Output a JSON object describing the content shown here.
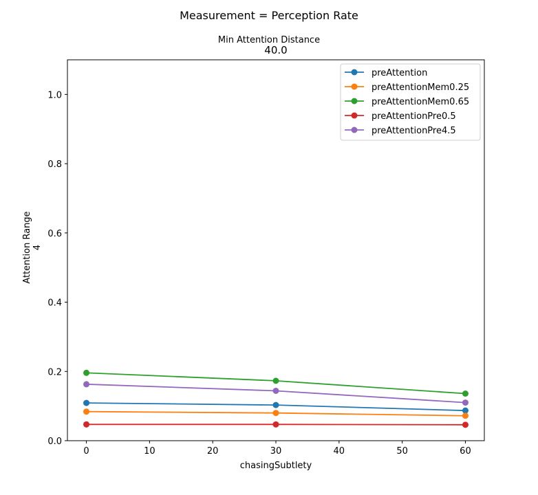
{
  "figure": {
    "suptitle": "Measurement = Perception Rate",
    "subtitle": "Min Attention Distance",
    "title": "40.0"
  },
  "chart_data": {
    "type": "line",
    "xlabel": "chasingSubtlety",
    "ylabel_line1": "Attention Range",
    "ylabel_line2": "4",
    "xlim": [
      -3,
      63
    ],
    "ylim": [
      0,
      1.1
    ],
    "xticks": [
      0,
      10,
      20,
      30,
      40,
      50,
      60
    ],
    "yticks": [
      0.0,
      0.2,
      0.4,
      0.6,
      0.8,
      1.0
    ],
    "ytick_labels": [
      "0.0",
      "0.2",
      "0.4",
      "0.6",
      "0.8",
      "1.0"
    ],
    "legend_position": "top-right",
    "x": [
      0,
      30,
      60
    ],
    "series": [
      {
        "name": "preAttention",
        "color": "#1f77b4",
        "values": [
          0.109,
          0.103,
          0.087
        ]
      },
      {
        "name": "preAttentionMem0.25",
        "color": "#ff7f0e",
        "values": [
          0.084,
          0.08,
          0.072
        ]
      },
      {
        "name": "preAttentionMem0.65",
        "color": "#2ca02c",
        "values": [
          0.196,
          0.173,
          0.136
        ]
      },
      {
        "name": "preAttentionPre0.5",
        "color": "#d62728",
        "values": [
          0.047,
          0.047,
          0.046
        ]
      },
      {
        "name": "preAttentionPre4.5",
        "color": "#9467bd",
        "values": [
          0.163,
          0.144,
          0.11
        ]
      }
    ]
  }
}
